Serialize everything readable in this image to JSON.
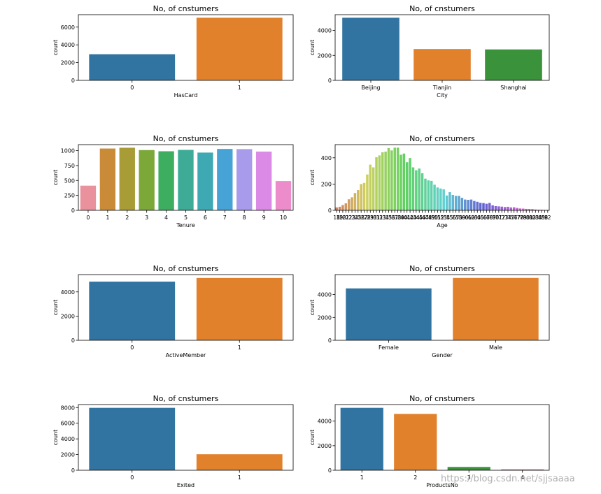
{
  "watermark": "https://blog.csdn.net/sjjsaaaa",
  "chart_data": [
    {
      "id": "hascard",
      "type": "bar",
      "title": "No, of cnstumers",
      "xlabel": "HasCard",
      "ylabel": "count",
      "categories": [
        "0",
        "1"
      ],
      "values": [
        2945,
        7055
      ],
      "yticks": [
        0,
        2000,
        4000,
        6000
      ],
      "ylim": [
        0,
        7400
      ],
      "colors": [
        "#3274a1",
        "#e1812c"
      ]
    },
    {
      "id": "city",
      "type": "bar",
      "title": "No, of cnstumers",
      "xlabel": "City",
      "ylabel": "count",
      "categories": [
        "Beijing",
        "Tianjin",
        "Shanghai"
      ],
      "values": [
        5014,
        2509,
        2477
      ],
      "yticks": [
        0,
        2000,
        4000
      ],
      "ylim": [
        0,
        5260
      ],
      "colors": [
        "#3274a1",
        "#e1812c",
        "#3a923a"
      ]
    },
    {
      "id": "tenure",
      "type": "bar",
      "title": "No, of cnstumers",
      "xlabel": "Tenure",
      "ylabel": "count",
      "categories": [
        "0",
        "1",
        "2",
        "3",
        "4",
        "5",
        "6",
        "7",
        "8",
        "9",
        "10"
      ],
      "values": [
        413,
        1035,
        1048,
        1009,
        989,
        1012,
        967,
        1028,
        1025,
        984,
        490
      ],
      "yticks": [
        0,
        250,
        500,
        750,
        1000
      ],
      "ylim": [
        0,
        1100
      ],
      "colors": [
        "#e9919c",
        "#c98b37",
        "#a79c36",
        "#7ca83a",
        "#3dae60",
        "#3eab97",
        "#3ea8b3",
        "#47a3d6",
        "#a89bec",
        "#db8ae6",
        "#ec8cca"
      ]
    },
    {
      "id": "age",
      "type": "bar",
      "title": "No, of cnstumers",
      "xlabel": "Age",
      "ylabel": "count",
      "categories": [
        "18",
        "19",
        "20",
        "21",
        "22",
        "23",
        "24",
        "25",
        "26",
        "27",
        "28",
        "29",
        "30",
        "31",
        "32",
        "33",
        "34",
        "35",
        "36",
        "37",
        "38",
        "39",
        "40",
        "41",
        "42",
        "43",
        "44",
        "45",
        "46",
        "47",
        "48",
        "49",
        "50",
        "51",
        "52",
        "53",
        "54",
        "55",
        "56",
        "57",
        "58",
        "59",
        "60",
        "61",
        "62",
        "63",
        "64",
        "65",
        "66",
        "67",
        "68",
        "69",
        "70",
        "71",
        "72",
        "73",
        "74",
        "75",
        "76",
        "77",
        "78",
        "79",
        "80",
        "81",
        "82",
        "83",
        "84",
        "85",
        "88",
        "92"
      ],
      "values": [
        22,
        27,
        40,
        53,
        84,
        99,
        132,
        154,
        200,
        209,
        273,
        348,
        327,
        404,
        418,
        442,
        447,
        474,
        456,
        477,
        477,
        423,
        432,
        366,
        398,
        327,
        305,
        318,
        282,
        241,
        228,
        224,
        195,
        174,
        166,
        160,
        113,
        138,
        117,
        110,
        110,
        95,
        82,
        80,
        82,
        71,
        65,
        57,
        55,
        50,
        56,
        38,
        32,
        30,
        28,
        25,
        27,
        22,
        23,
        18,
        14,
        13,
        11,
        10,
        9,
        6,
        4,
        4,
        2,
        2
      ],
      "yticks": [
        0,
        200,
        400
      ],
      "ylim": [
        0,
        500
      ],
      "colors": []
    },
    {
      "id": "active",
      "type": "bar",
      "title": "No, of cnstumers",
      "xlabel": "ActiveMember",
      "ylabel": "count",
      "categories": [
        "0",
        "1"
      ],
      "values": [
        4849,
        5151
      ],
      "yticks": [
        0,
        2000,
        4000
      ],
      "ylim": [
        0,
        5430
      ],
      "colors": [
        "#3274a1",
        "#e1812c"
      ]
    },
    {
      "id": "gender",
      "type": "bar",
      "title": "No, of cnstumers",
      "xlabel": "Gender",
      "ylabel": "count",
      "categories": [
        "Female",
        "Male"
      ],
      "values": [
        4543,
        5457
      ],
      "yticks": [
        0,
        2000,
        4000
      ],
      "ylim": [
        0,
        5750
      ],
      "colors": [
        "#3274a1",
        "#e1812c"
      ]
    },
    {
      "id": "exited",
      "type": "bar",
      "title": "No, of cnstumers",
      "xlabel": "Exited",
      "ylabel": "count",
      "categories": [
        "0",
        "1"
      ],
      "values": [
        7963,
        2037
      ],
      "yticks": [
        0,
        2000,
        4000,
        6000,
        8000
      ],
      "ylim": [
        0,
        8380
      ],
      "colors": [
        "#3274a1",
        "#e1812c"
      ]
    },
    {
      "id": "products",
      "type": "bar",
      "title": "No, of cnstumers",
      "xlabel": "ProductsNo",
      "ylabel": "count",
      "categories": [
        "1",
        "2",
        "3",
        "4"
      ],
      "values": [
        5084,
        4590,
        266,
        60
      ],
      "yticks": [
        0,
        2000,
        4000
      ],
      "ylim": [
        0,
        5350
      ],
      "colors": [
        "#3274a1",
        "#e1812c",
        "#3a923a",
        "#c03d3e"
      ]
    }
  ]
}
